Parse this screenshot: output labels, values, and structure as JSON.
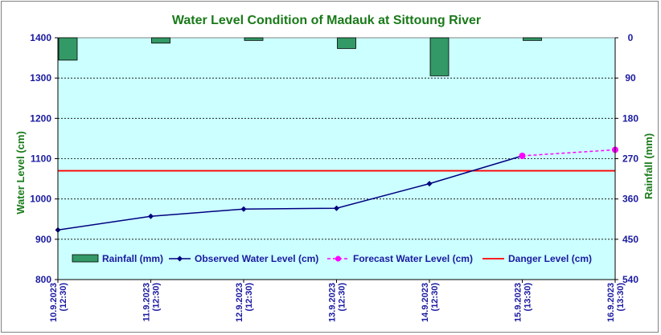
{
  "chart_data": {
    "type": "line",
    "title": "Water Level Condition of Madauk at Sittoung River",
    "ylabel": "Water Level (cm)",
    "y2label": "Rainfall (mm)",
    "ylim": [
      800,
      1400
    ],
    "yticks": [
      800,
      900,
      1000,
      1100,
      1200,
      1300,
      1400
    ],
    "y2lim": [
      0,
      540
    ],
    "y2ticks": [
      0,
      90,
      180,
      270,
      360,
      450,
      540
    ],
    "y2_inverted": true,
    "categories": [
      [
        "10.9.2023",
        "(12:30)"
      ],
      [
        "11.9.2023",
        "(12:30)"
      ],
      [
        "12.9.2023",
        "(12:30)"
      ],
      [
        "13.9.2023",
        "(12:30)"
      ],
      [
        "14.9.2023",
        "(12:30)"
      ],
      [
        "15.9.2023",
        "(13:30)"
      ],
      [
        "16.9.2023",
        "(13:30)"
      ]
    ],
    "rainfall": {
      "name": "Rainfall (mm)",
      "color": "#339966",
      "values": [
        50,
        12,
        6,
        24,
        85,
        6
      ]
    },
    "observed": {
      "name": "Observed Water Level (cm)",
      "color": "#000080",
      "values": [
        923,
        957,
        975,
        977,
        1038,
        1107
      ]
    },
    "forecast": {
      "name": "Forecast Water Level (cm)",
      "color": "#ff00ff",
      "x": [
        5,
        6
      ],
      "values": [
        1107,
        1122
      ]
    },
    "danger": {
      "name": "Danger Level (cm)",
      "color": "#ff0000",
      "value": 1070
    },
    "grid": true,
    "legend_position": "bottom"
  }
}
